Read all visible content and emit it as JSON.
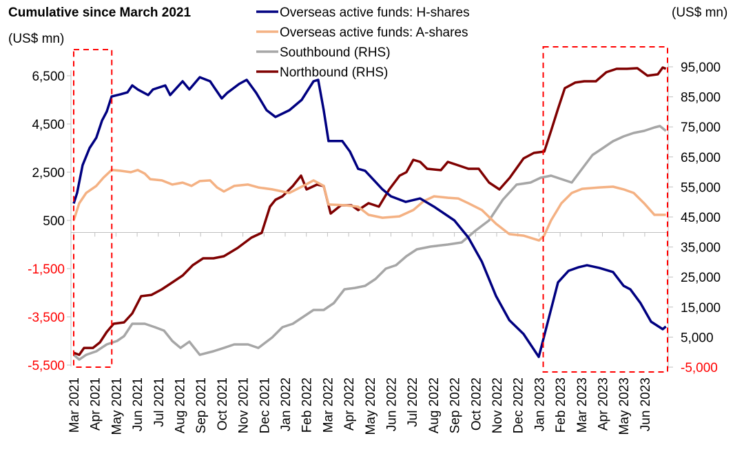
{
  "chart_data": {
    "type": "line",
    "title": "Cumulative since March 2021",
    "ylabel_left": "(US$ mn)",
    "ylabel_right": "(US$ mn)",
    "x_unit": "month index (0 = Mar 2021)",
    "categories": [
      "Mar 2021",
      "Apr 2021",
      "May 2021",
      "Jun 2021",
      "Jul 2021",
      "Aug 2021",
      "Sep 2021",
      "Oct 2021",
      "Nov 2021",
      "Dec 2021",
      "Jan 2022",
      "Feb 2022",
      "Mar 2022",
      "Apr 2022",
      "May 2022",
      "Jun 2022",
      "Jul 2022",
      "Aug 2022",
      "Sep 2022",
      "Oct 2022",
      "Nov 2022",
      "Dec 2022",
      "Jan 2023",
      "Feb 2023",
      "Mar 2023",
      "Apr 2023",
      "May 2023",
      "Jun 2023"
    ],
    "left_axis": {
      "ticks": [
        6500,
        4500,
        2500,
        500,
        -1500,
        -3500,
        -5500
      ],
      "tick_labels": [
        "6,500",
        "4,500",
        "2,500",
        "500",
        "-1,500",
        "-3,500",
        "-5,500"
      ],
      "ylim": [
        -5500,
        6500
      ]
    },
    "right_axis": {
      "ticks": [
        95000,
        85000,
        75000,
        65000,
        55000,
        45000,
        35000,
        25000,
        15000,
        5000,
        -5000
      ],
      "tick_labels": [
        "95,000",
        "85,000",
        "75,000",
        "65,000",
        "55,000",
        "45,000",
        "35,000",
        "25,000",
        "15,000",
        "5,000",
        "-5,000"
      ],
      "ylim": [
        -5000,
        95000
      ]
    },
    "negative_label_color": "#ff0000",
    "highlight_boxes": [
      {
        "from_month": 0,
        "to_month": 1.8,
        "color": "#ff0000"
      },
      {
        "from_month": 22.2,
        "to_month": 28.1,
        "color": "#ff0000"
      }
    ],
    "legend_position": "top-center",
    "series": [
      {
        "name": "Overseas active funds: H-shares",
        "axis": "left",
        "color": "#000080",
        "points": [
          [
            0,
            1200
          ],
          [
            0.16,
            1640
          ],
          [
            0.42,
            2790
          ],
          [
            0.75,
            3500
          ],
          [
            1.07,
            3930
          ],
          [
            1.34,
            4640
          ],
          [
            1.56,
            5010
          ],
          [
            1.79,
            5640
          ],
          [
            2.21,
            5730
          ],
          [
            2.54,
            5810
          ],
          [
            2.77,
            6100
          ],
          [
            3.03,
            5930
          ],
          [
            3.52,
            5700
          ],
          [
            3.75,
            5930
          ],
          [
            4.33,
            6100
          ],
          [
            4.56,
            5700
          ],
          [
            5.15,
            6270
          ],
          [
            5.47,
            5930
          ],
          [
            5.96,
            6440
          ],
          [
            6.45,
            6270
          ],
          [
            6.71,
            5930
          ],
          [
            7.0,
            5560
          ],
          [
            7.26,
            5790
          ],
          [
            7.82,
            6160
          ],
          [
            8.18,
            6330
          ],
          [
            8.63,
            5790
          ],
          [
            9.12,
            5070
          ],
          [
            9.54,
            4790
          ],
          [
            10.2,
            5070
          ],
          [
            10.78,
            5500
          ],
          [
            11.34,
            6270
          ],
          [
            11.56,
            6330
          ],
          [
            11.82,
            5070
          ],
          [
            12.05,
            3790
          ],
          [
            12.7,
            3790
          ],
          [
            13.06,
            3360
          ],
          [
            13.45,
            2640
          ],
          [
            13.78,
            2560
          ],
          [
            14.6,
            1790
          ],
          [
            15.0,
            1500
          ],
          [
            15.7,
            1270
          ],
          [
            16.38,
            1410
          ],
          [
            17.04,
            1070
          ],
          [
            18.0,
            500
          ],
          [
            18.66,
            -210
          ],
          [
            19.3,
            -1210
          ],
          [
            19.97,
            -2640
          ],
          [
            20.6,
            -3640
          ],
          [
            21.27,
            -4210
          ],
          [
            21.99,
            -5160
          ],
          [
            22.48,
            -3500
          ],
          [
            22.9,
            -2070
          ],
          [
            23.4,
            -1590
          ],
          [
            23.88,
            -1440
          ],
          [
            24.27,
            -1360
          ],
          [
            24.85,
            -1470
          ],
          [
            25.5,
            -1640
          ],
          [
            26.0,
            -2210
          ],
          [
            26.32,
            -2360
          ],
          [
            26.8,
            -2930
          ],
          [
            27.3,
            -3700
          ],
          [
            27.85,
            -4010
          ],
          [
            28.0,
            -3900
          ]
        ]
      },
      {
        "name": "Overseas active funds: A-shares",
        "axis": "left",
        "color": "#f4b183",
        "points": [
          [
            0,
            500
          ],
          [
            0.26,
            1210
          ],
          [
            0.59,
            1640
          ],
          [
            1.07,
            1930
          ],
          [
            1.4,
            2270
          ],
          [
            1.79,
            2590
          ],
          [
            2.21,
            2560
          ],
          [
            2.7,
            2500
          ],
          [
            3.03,
            2590
          ],
          [
            3.36,
            2440
          ],
          [
            3.62,
            2210
          ],
          [
            4.17,
            2160
          ],
          [
            4.66,
            1990
          ],
          [
            5.15,
            2070
          ],
          [
            5.57,
            1930
          ],
          [
            5.96,
            2130
          ],
          [
            6.45,
            2160
          ],
          [
            6.78,
            1870
          ],
          [
            7.1,
            1700
          ],
          [
            7.59,
            1930
          ],
          [
            8.24,
            1990
          ],
          [
            8.73,
            1870
          ],
          [
            9.38,
            1790
          ],
          [
            10.2,
            1640
          ],
          [
            10.85,
            1930
          ],
          [
            11.34,
            2160
          ],
          [
            11.82,
            1930
          ],
          [
            12.05,
            1160
          ],
          [
            12.8,
            1130
          ],
          [
            13.45,
            1070
          ],
          [
            13.94,
            730
          ],
          [
            14.6,
            610
          ],
          [
            15.4,
            670
          ],
          [
            16.06,
            930
          ],
          [
            16.55,
            1300
          ],
          [
            17.04,
            1500
          ],
          [
            17.7,
            1440
          ],
          [
            18.18,
            1410
          ],
          [
            18.66,
            1210
          ],
          [
            19.3,
            930
          ],
          [
            19.97,
            360
          ],
          [
            20.6,
            -70
          ],
          [
            21.27,
            -130
          ],
          [
            22.0,
            -330
          ],
          [
            22.24,
            -130
          ],
          [
            22.57,
            500
          ],
          [
            23.06,
            1210
          ],
          [
            23.55,
            1640
          ],
          [
            24.04,
            1810
          ],
          [
            24.85,
            1870
          ],
          [
            25.5,
            1900
          ],
          [
            26.0,
            1790
          ],
          [
            26.48,
            1640
          ],
          [
            26.97,
            1210
          ],
          [
            27.46,
            730
          ],
          [
            28.0,
            730
          ]
        ]
      },
      {
        "name": "Southbound (RHS)",
        "axis": "right",
        "color": "#a6a6a6",
        "points": [
          [
            0,
            -900
          ],
          [
            0.26,
            -2500
          ],
          [
            0.59,
            -900
          ],
          [
            1.07,
            270
          ],
          [
            1.56,
            2560
          ],
          [
            2.05,
            3710
          ],
          [
            2.38,
            5310
          ],
          [
            2.77,
            9440
          ],
          [
            3.36,
            9440
          ],
          [
            3.84,
            8300
          ],
          [
            4.27,
            7150
          ],
          [
            4.66,
            3710
          ],
          [
            5.05,
            1410
          ],
          [
            5.47,
            3480
          ],
          [
            5.96,
            -900
          ],
          [
            6.6,
            270
          ],
          [
            7.1,
            1410
          ],
          [
            7.59,
            2560
          ],
          [
            8.24,
            2560
          ],
          [
            8.73,
            1410
          ],
          [
            9.38,
            4860
          ],
          [
            9.87,
            8300
          ],
          [
            10.36,
            9440
          ],
          [
            10.85,
            11740
          ],
          [
            11.34,
            14030
          ],
          [
            11.82,
            14030
          ],
          [
            12.3,
            16320
          ],
          [
            12.8,
            20910
          ],
          [
            13.3,
            21370
          ],
          [
            13.78,
            22060
          ],
          [
            14.27,
            24350
          ],
          [
            14.76,
            27800
          ],
          [
            15.24,
            28940
          ],
          [
            15.73,
            31920
          ],
          [
            16.22,
            34220
          ],
          [
            16.87,
            35140
          ],
          [
            17.69,
            35820
          ],
          [
            18.34,
            36510
          ],
          [
            18.99,
            40410
          ],
          [
            19.64,
            43850
          ],
          [
            20.29,
            50740
          ],
          [
            20.94,
            55780
          ],
          [
            21.6,
            56470
          ],
          [
            22.08,
            58080
          ],
          [
            22.57,
            58760
          ],
          [
            23.06,
            57620
          ],
          [
            23.55,
            56470
          ],
          [
            24.04,
            61060
          ],
          [
            24.53,
            65650
          ],
          [
            25.02,
            67940
          ],
          [
            25.5,
            70230
          ],
          [
            26.0,
            71840
          ],
          [
            26.48,
            72990
          ],
          [
            26.97,
            73680
          ],
          [
            27.46,
            74820
          ],
          [
            27.72,
            75280
          ],
          [
            28.0,
            73680
          ]
        ]
      },
      {
        "name": "Northbound (RHS)",
        "axis": "right",
        "color": "#7f0000",
        "points": [
          [
            0,
            -200
          ],
          [
            0.26,
            -900
          ],
          [
            0.49,
            1410
          ],
          [
            0.91,
            1410
          ],
          [
            1.24,
            3250
          ],
          [
            1.56,
            6690
          ],
          [
            1.89,
            9440
          ],
          [
            2.38,
            9900
          ],
          [
            2.77,
            12880
          ],
          [
            3.19,
            18620
          ],
          [
            3.68,
            19070
          ],
          [
            4.17,
            20910
          ],
          [
            4.66,
            23210
          ],
          [
            5.15,
            25500
          ],
          [
            5.63,
            28940
          ],
          [
            6.12,
            31240
          ],
          [
            6.61,
            31240
          ],
          [
            7.1,
            31920
          ],
          [
            7.75,
            34680
          ],
          [
            8.4,
            38120
          ],
          [
            8.89,
            39720
          ],
          [
            9.28,
            48440
          ],
          [
            9.54,
            50740
          ],
          [
            9.87,
            51880
          ],
          [
            10.36,
            55320
          ],
          [
            10.75,
            58760
          ],
          [
            11.01,
            54170
          ],
          [
            11.5,
            55780
          ],
          [
            11.82,
            55320
          ],
          [
            12.15,
            46150
          ],
          [
            12.64,
            48900
          ],
          [
            13.13,
            48900
          ],
          [
            13.45,
            47290
          ],
          [
            13.94,
            49590
          ],
          [
            14.43,
            48440
          ],
          [
            14.92,
            54170
          ],
          [
            15.41,
            58760
          ],
          [
            15.73,
            59910
          ],
          [
            16.06,
            64040
          ],
          [
            16.38,
            63350
          ],
          [
            16.71,
            61060
          ],
          [
            17.36,
            60600
          ],
          [
            17.69,
            63350
          ],
          [
            18.18,
            62210
          ],
          [
            18.66,
            61060
          ],
          [
            19.15,
            61060
          ],
          [
            19.64,
            56470
          ],
          [
            20.13,
            54170
          ],
          [
            20.62,
            58080
          ],
          [
            21.27,
            64500
          ],
          [
            21.76,
            66330
          ],
          [
            22.25,
            66790
          ],
          [
            22.57,
            73680
          ],
          [
            22.9,
            81010
          ],
          [
            23.22,
            87900
          ],
          [
            23.71,
            89740
          ],
          [
            24.14,
            90190
          ],
          [
            24.69,
            90190
          ],
          [
            25.18,
            93180
          ],
          [
            25.67,
            94330
          ],
          [
            26.16,
            94330
          ],
          [
            26.65,
            94550
          ],
          [
            27.13,
            92030
          ],
          [
            27.62,
            92490
          ],
          [
            27.85,
            94780
          ],
          [
            28.0,
            94330
          ]
        ]
      }
    ]
  }
}
